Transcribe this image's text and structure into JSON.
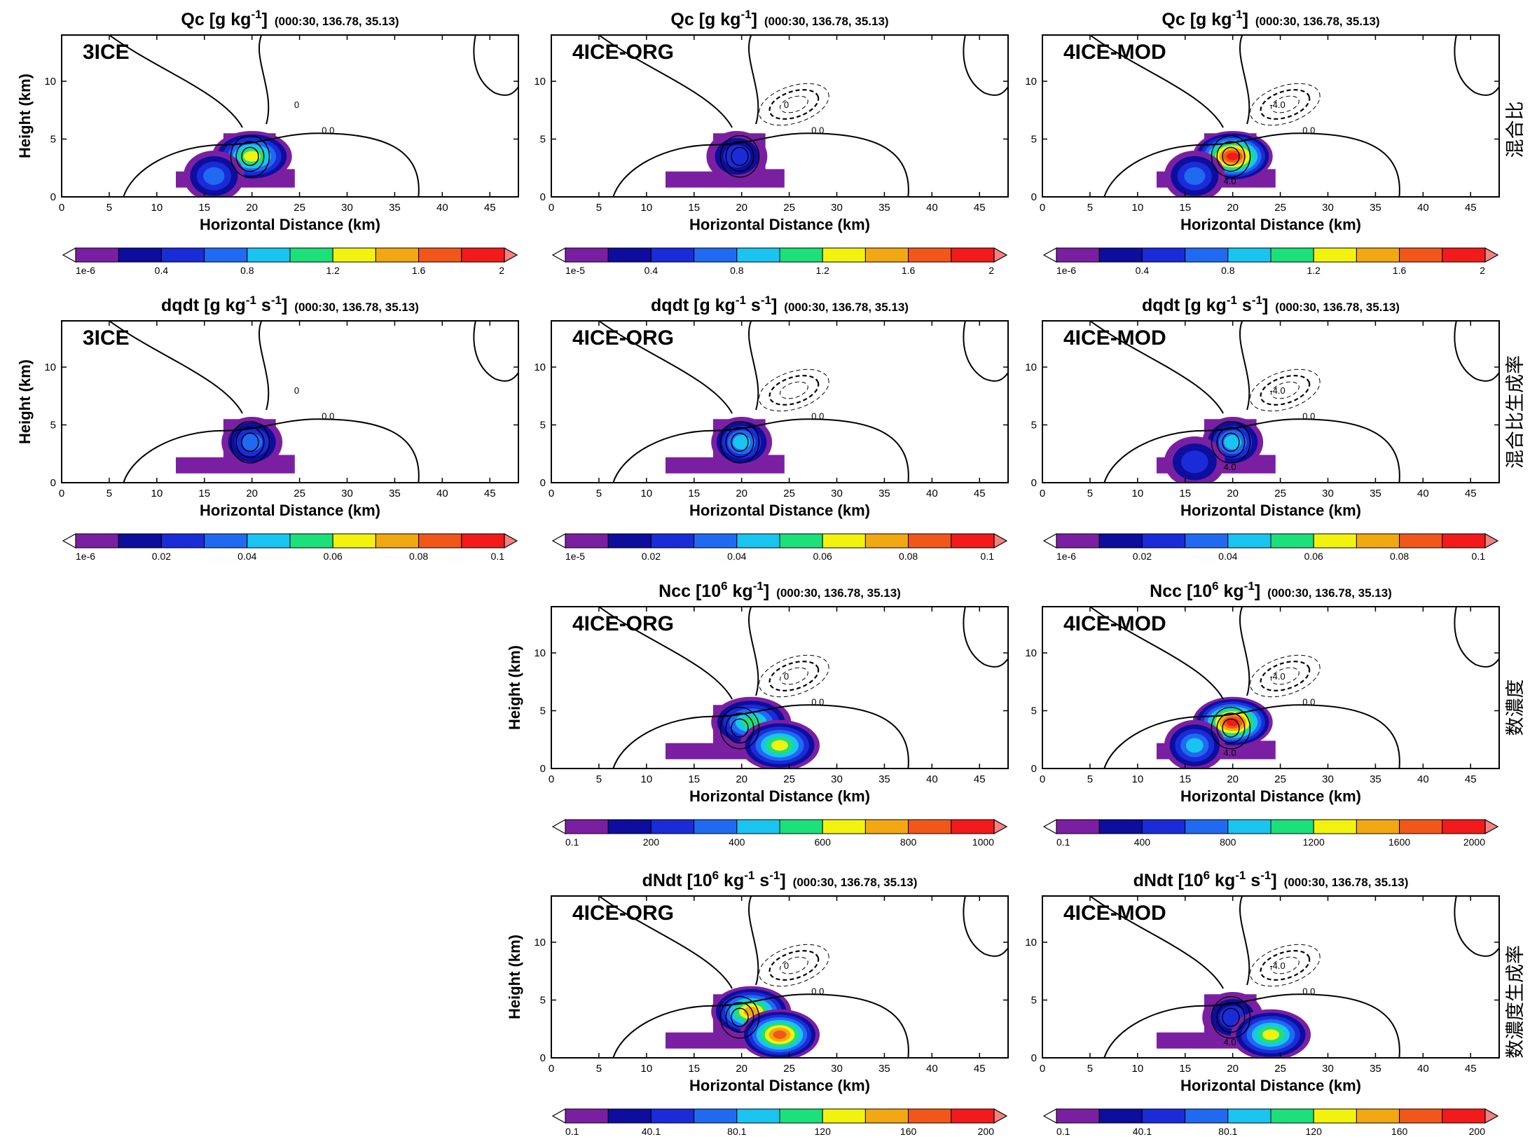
{
  "chart_data": [
    {
      "type": "heatmap",
      "row": 0,
      "col": 0,
      "exp": "3ICE",
      "title": "Qc [g kg",
      "title_sup": "-1",
      "title_end": "]",
      "subtitle": "(000:30, 136.78, 35.13)",
      "xlabel": "Horizontal Distance (km)",
      "ylabel": "Height (km)",
      "xlim": [
        0,
        48
      ],
      "ylim": [
        0,
        14
      ],
      "xticks": [
        0,
        5,
        10,
        15,
        20,
        25,
        30,
        35,
        40,
        45
      ],
      "yticks": [
        0,
        5,
        10
      ],
      "colorbar_labels": [
        "1e-6",
        "0.4",
        "0.8",
        "1.2",
        "1.6",
        "2"
      ],
      "blobs": [
        {
          "x": 20,
          "y": 3.5,
          "peak": 1.3
        },
        {
          "x": 16,
          "y": 1.8,
          "peak": 0.8
        }
      ],
      "contour_labels": [
        "0.0",
        "0"
      ]
    },
    {
      "type": "heatmap",
      "row": 0,
      "col": 1,
      "exp": "4ICE-ORG",
      "title": "Qc [g kg",
      "title_sup": "-1",
      "title_end": "]",
      "subtitle": "(000:30, 136.78, 35.13)",
      "xlabel": "Horizontal Distance (km)",
      "ylabel": "",
      "xlim": [
        0,
        48
      ],
      "ylim": [
        0,
        14
      ],
      "xticks": [
        0,
        5,
        10,
        15,
        20,
        25,
        30,
        35,
        40,
        45
      ],
      "yticks": [
        0,
        5,
        10
      ],
      "colorbar_labels": [
        "1e-5",
        "0.4",
        "0.8",
        "1.2",
        "1.6",
        "2"
      ],
      "blobs": [
        {
          "x": 19.5,
          "y": 3.5,
          "peak": 0.5
        }
      ],
      "contour_labels": [
        "0.0",
        "0"
      ]
    },
    {
      "type": "heatmap",
      "row": 0,
      "col": 2,
      "exp": "4ICE-MOD",
      "title": "Qc [g kg",
      "title_sup": "-1",
      "title_end": "]",
      "subtitle": "(000:30, 136.78, 35.13)",
      "xlabel": "Horizontal Distance (km)",
      "ylabel": "",
      "xlim": [
        0,
        48
      ],
      "ylim": [
        0,
        14
      ],
      "xticks": [
        0,
        5,
        10,
        15,
        20,
        25,
        30,
        35,
        40,
        45
      ],
      "yticks": [
        0,
        5,
        10
      ],
      "colorbar_labels": [
        "1e-6",
        "0.4",
        "0.8",
        "1.2",
        "1.6",
        "2"
      ],
      "blobs": [
        {
          "x": 20,
          "y": 3.5,
          "peak": 2.0
        },
        {
          "x": 16,
          "y": 1.8,
          "peak": 0.8
        }
      ],
      "contour_labels": [
        "0.0",
        "-4.0",
        "4.0"
      ]
    },
    {
      "type": "heatmap",
      "row": 1,
      "col": 0,
      "exp": "3ICE",
      "title": "dqdt [g kg",
      "title_sup": "-1",
      "title_mid": " s",
      "title_sup2": "-1",
      "title_end": "]",
      "subtitle": "(000:30, 136.78, 35.13)",
      "xlabel": "Horizontal Distance (km)",
      "ylabel": "Height (km)",
      "xlim": [
        0,
        48
      ],
      "ylim": [
        0,
        14
      ],
      "xticks": [
        0,
        5,
        10,
        15,
        20,
        25,
        30,
        35,
        40,
        45
      ],
      "yticks": [
        0,
        5,
        10
      ],
      "colorbar_labels": [
        "1e-6",
        "0.02",
        "0.04",
        "0.06",
        "0.08",
        "0.1"
      ],
      "blobs": [
        {
          "x": 20,
          "y": 3.5,
          "peak": 0.04
        }
      ],
      "contour_labels": [
        "0.0",
        "0"
      ]
    },
    {
      "type": "heatmap",
      "row": 1,
      "col": 1,
      "exp": "4ICE-ORG",
      "title": "dqdt [g kg",
      "title_sup": "-1",
      "title_mid": " s",
      "title_sup2": "-1",
      "title_end": "]",
      "subtitle": "(000:30, 136.78, 35.13)",
      "xlabel": "Horizontal Distance (km)",
      "ylabel": "",
      "xlim": [
        0,
        48
      ],
      "ylim": [
        0,
        14
      ],
      "xticks": [
        0,
        5,
        10,
        15,
        20,
        25,
        30,
        35,
        40,
        45
      ],
      "yticks": [
        0,
        5,
        10
      ],
      "colorbar_labels": [
        "1e-5",
        "0.02",
        "0.04",
        "0.06",
        "0.08",
        "0.1"
      ],
      "blobs": [
        {
          "x": 20,
          "y": 3.5,
          "peak": 0.045
        }
      ],
      "contour_labels": [
        "0.0"
      ]
    },
    {
      "type": "heatmap",
      "row": 1,
      "col": 2,
      "exp": "4ICE-MOD",
      "title": "dqdt [g kg",
      "title_sup": "-1",
      "title_mid": " s",
      "title_sup2": "-1",
      "title_end": "]",
      "subtitle": "(000:30, 136.78, 35.13)",
      "xlabel": "Horizontal Distance (km)",
      "ylabel": "",
      "xlim": [
        0,
        48
      ],
      "ylim": [
        0,
        14
      ],
      "xticks": [
        0,
        5,
        10,
        15,
        20,
        25,
        30,
        35,
        40,
        45
      ],
      "yticks": [
        0,
        5,
        10
      ],
      "colorbar_labels": [
        "1e-6",
        "0.02",
        "0.04",
        "0.06",
        "0.08",
        "0.1"
      ],
      "blobs": [
        {
          "x": 20,
          "y": 3.5,
          "peak": 0.05
        },
        {
          "x": 16,
          "y": 1.8,
          "peak": 0.03
        }
      ],
      "contour_labels": [
        "0.0",
        "-4.0",
        "4.0"
      ]
    },
    {
      "type": "heatmap",
      "row": 2,
      "col": 1,
      "exp": "4ICE-ORG",
      "title": "Ncc [10",
      "title_sup": "6",
      "title_mid": " kg",
      "title_sup2": "-1",
      "title_end": "]",
      "subtitle": "(000:30, 136.78, 35.13)",
      "xlabel": "Horizontal Distance (km)",
      "ylabel": "Height (km)",
      "xlim": [
        0,
        48
      ],
      "ylim": [
        0,
        14
      ],
      "xticks": [
        0,
        5,
        10,
        15,
        20,
        25,
        30,
        35,
        40,
        45
      ],
      "yticks": [
        0,
        5,
        10
      ],
      "colorbar_labels": [
        "0.1",
        "200",
        "400",
        "600",
        "800",
        "1000"
      ],
      "blobs": [
        {
          "x": 21,
          "y": 4,
          "peak": 600
        },
        {
          "x": 24,
          "y": 2,
          "peak": 700
        }
      ],
      "contour_labels": [
        "0.0",
        "0"
      ]
    },
    {
      "type": "heatmap",
      "row": 2,
      "col": 2,
      "exp": "4ICE-MOD",
      "title": "Ncc [10",
      "title_sup": "6",
      "title_mid": " kg",
      "title_sup2": "-1",
      "title_end": "]",
      "subtitle": "(000:30, 136.78, 35.13)",
      "xlabel": "Horizontal Distance (km)",
      "ylabel": "",
      "xlim": [
        0,
        48
      ],
      "ylim": [
        0,
        14
      ],
      "xticks": [
        0,
        5,
        10,
        15,
        20,
        25,
        30,
        35,
        40,
        45
      ],
      "yticks": [
        0,
        5,
        10
      ],
      "colorbar_labels": [
        "0.1",
        "400",
        "800",
        "1200",
        "1600",
        "2000"
      ],
      "blobs": [
        {
          "x": 20,
          "y": 4,
          "peak": 1900
        },
        {
          "x": 16,
          "y": 2,
          "peak": 900
        }
      ],
      "contour_labels": [
        "0.0",
        "-4.0",
        "4.0"
      ]
    },
    {
      "type": "heatmap",
      "row": 3,
      "col": 1,
      "exp": "4ICE-ORG",
      "title": "dNdt [10",
      "title_sup": "6",
      "title_mid": " kg",
      "title_sup2": "-1",
      "title_mid2": " s",
      "title_sup3": "-1",
      "title_end": "]",
      "subtitle": "(000:30, 136.78, 35.13)",
      "xlabel": "Horizontal Distance (km)",
      "ylabel": "Height (km)",
      "xlim": [
        0,
        48
      ],
      "ylim": [
        0,
        14
      ],
      "xticks": [
        0,
        5,
        10,
        15,
        20,
        25,
        30,
        35,
        40,
        45
      ],
      "yticks": [
        0,
        5,
        10
      ],
      "colorbar_labels": [
        "0.1",
        "40.1",
        "80.1",
        "120",
        "160",
        "200"
      ],
      "blobs": [
        {
          "x": 21,
          "y": 4,
          "peak": 150
        },
        {
          "x": 24,
          "y": 2,
          "peak": 170
        }
      ],
      "contour_labels": [
        "0.0",
        "0"
      ]
    },
    {
      "type": "heatmap",
      "row": 3,
      "col": 2,
      "exp": "4ICE-MOD",
      "title": "dNdt [10",
      "title_sup": "6",
      "title_mid": " kg",
      "title_sup2": "-1",
      "title_mid2": " s",
      "title_sup3": "-1",
      "title_end": "]",
      "subtitle": "(000:30, 136.78, 35.13)",
      "xlabel": "Horizontal Distance (km)",
      "ylabel": "",
      "xlim": [
        0,
        48
      ],
      "ylim": [
        0,
        14
      ],
      "xticks": [
        0,
        5,
        10,
        15,
        20,
        25,
        30,
        35,
        40,
        45
      ],
      "yticks": [
        0,
        5,
        10
      ],
      "colorbar_labels": [
        "0.1",
        "40.1",
        "80.1",
        "120",
        "160",
        "200"
      ],
      "blobs": [
        {
          "x": 20,
          "y": 3.5,
          "peak": 60
        },
        {
          "x": 24,
          "y": 2,
          "peak": 140
        }
      ],
      "contour_labels": [
        "0.0",
        "-4.0",
        "4.0"
      ]
    }
  ],
  "row_labels": [
    "混合比",
    "混合比生成率",
    "数濃度",
    "数濃度生成率"
  ],
  "palette": [
    "#7b1fa2",
    "#0d0d9e",
    "#1a2bd8",
    "#1f6af0",
    "#19c4f0",
    "#1ce07a",
    "#f2f20f",
    "#f2a812",
    "#f2571a",
    "#f21a1a"
  ]
}
